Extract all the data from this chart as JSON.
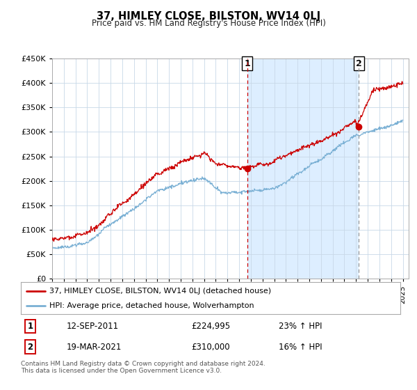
{
  "title": "37, HIMLEY CLOSE, BILSTON, WV14 0LJ",
  "subtitle": "Price paid vs. HM Land Registry's House Price Index (HPI)",
  "ylim": [
    0,
    450000
  ],
  "yticks": [
    0,
    50000,
    100000,
    150000,
    200000,
    250000,
    300000,
    350000,
    400000,
    450000
  ],
  "xmin": 1995,
  "xmax": 2025,
  "line1_color": "#cc0000",
  "line2_color": "#7ab0d4",
  "shade_color": "#ddeeff",
  "marker1_date": 2011.7,
  "marker1_value": 224995,
  "marker2_date": 2021.22,
  "marker2_value": 310000,
  "vline1_color": "#cc0000",
  "vline2_color": "#999999",
  "legend1_text": "37, HIMLEY CLOSE, BILSTON, WV14 0LJ (detached house)",
  "legend2_text": "HPI: Average price, detached house, Wolverhampton",
  "table_row1": [
    "1",
    "12-SEP-2011",
    "£224,995",
    "23% ↑ HPI"
  ],
  "table_row2": [
    "2",
    "19-MAR-2021",
    "£310,000",
    "16% ↑ HPI"
  ],
  "footer": "Contains HM Land Registry data © Crown copyright and database right 2024.\nThis data is licensed under the Open Government Licence v3.0.",
  "bg_color": "#ffffff",
  "grid_color": "#c8d8e8"
}
